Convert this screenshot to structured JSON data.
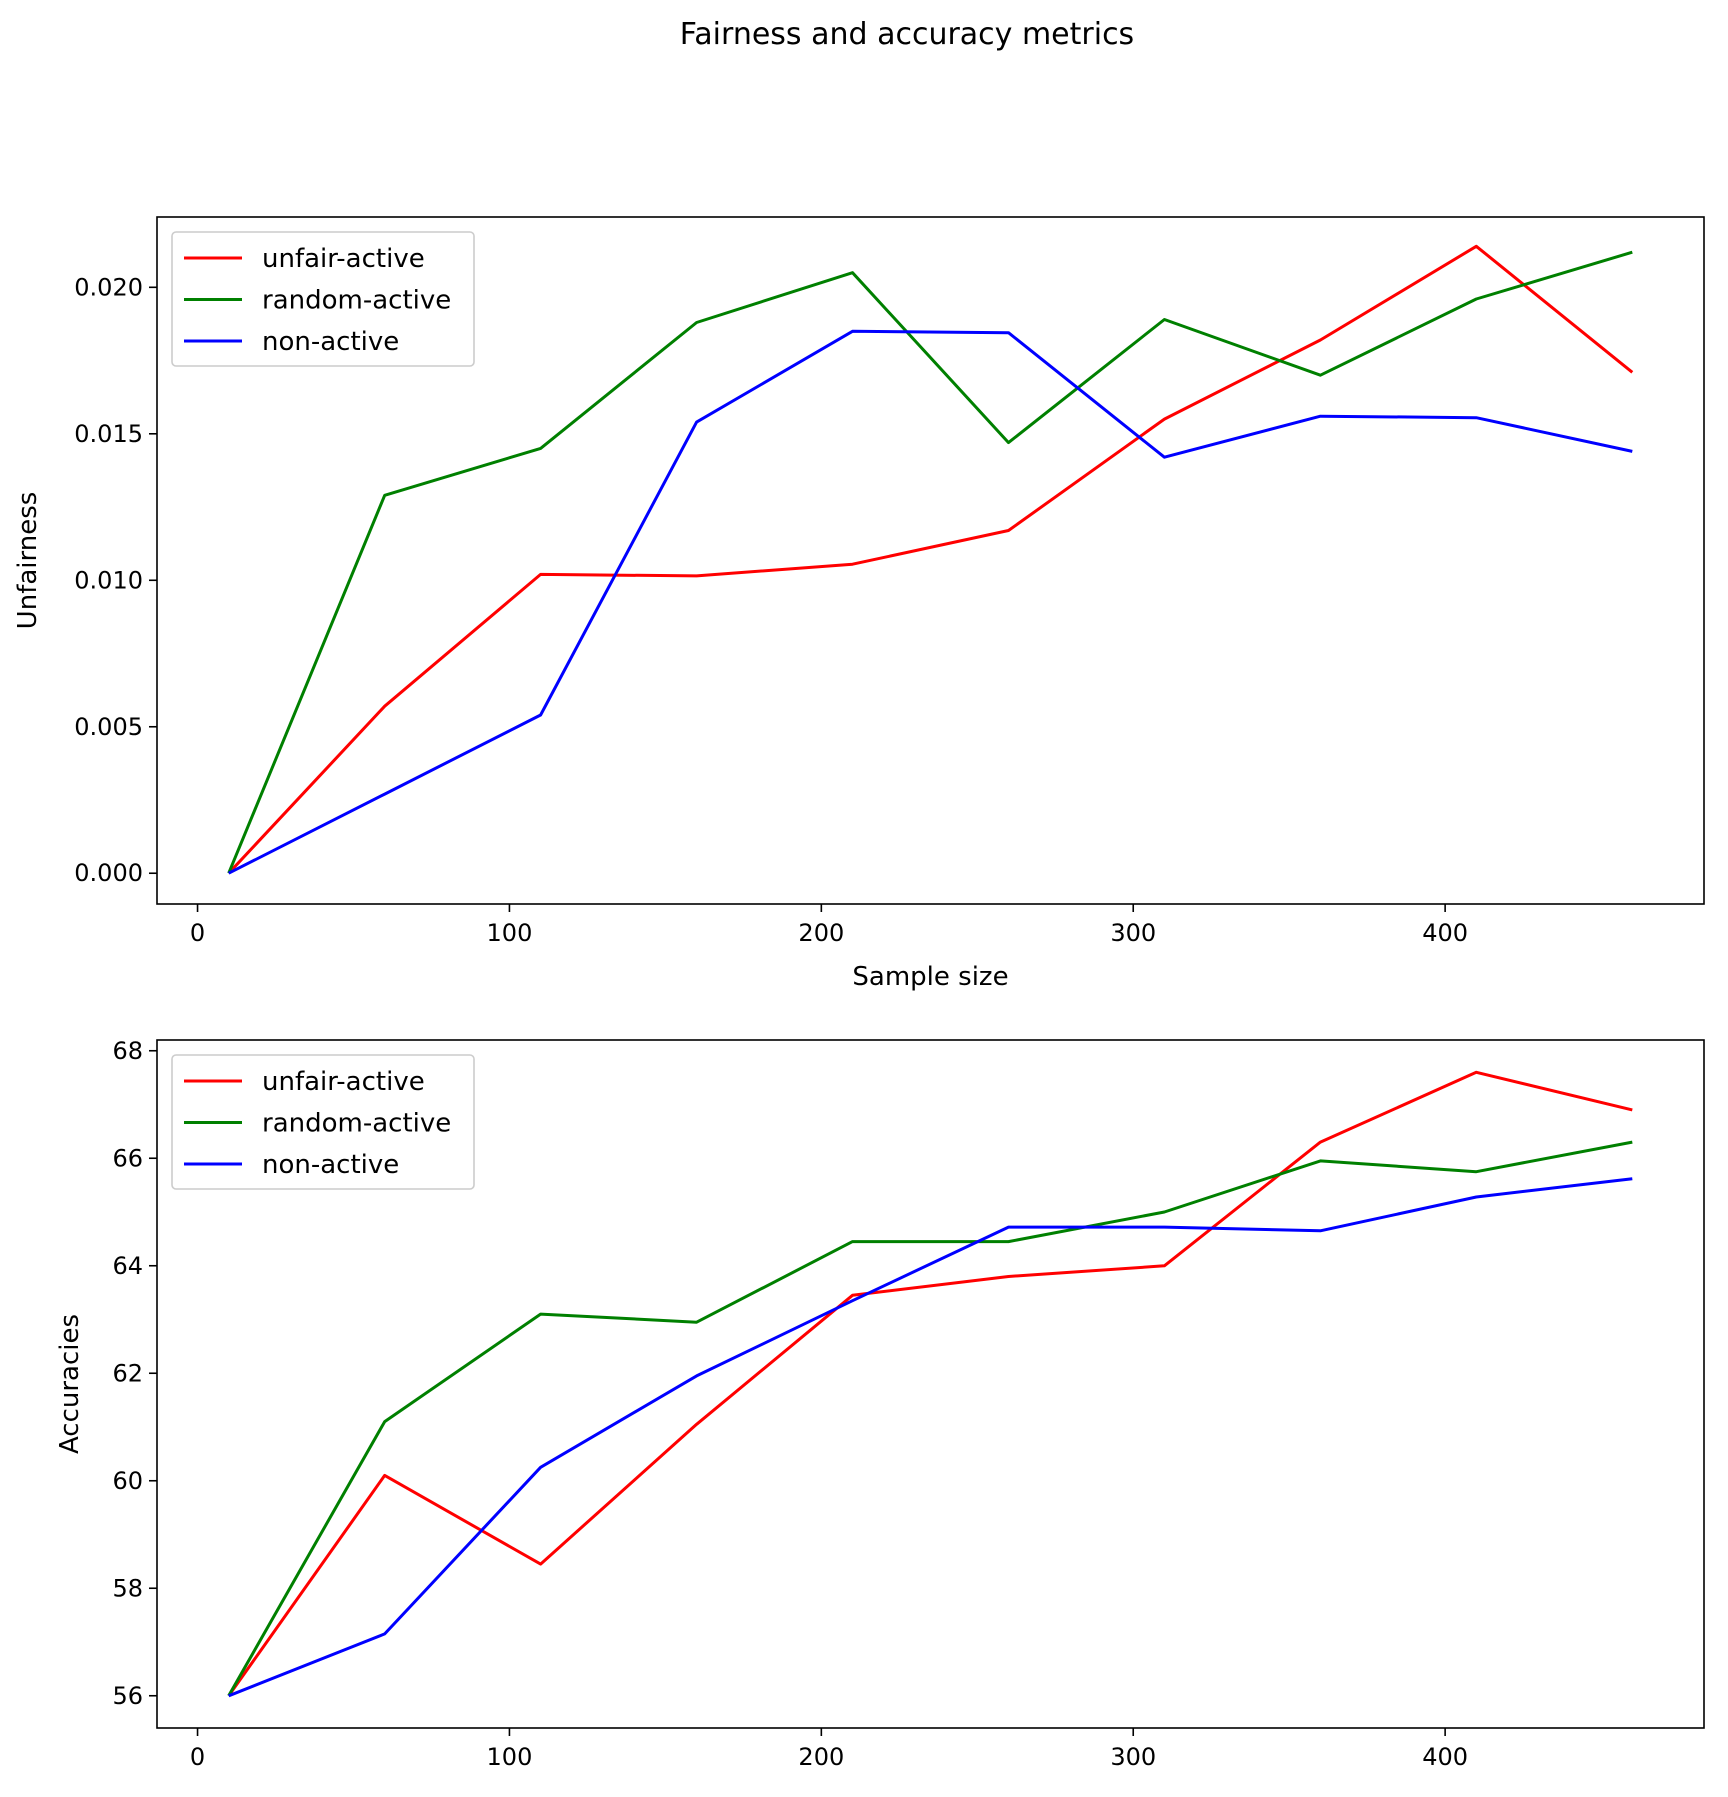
{
  "figure": {
    "title": "Fairness and accuracy metrics"
  },
  "chart_data": [
    {
      "type": "line",
      "title": "",
      "xlabel": "Sample size",
      "ylabel": "Unfairness",
      "x": [
        10,
        60,
        110,
        160,
        210,
        260,
        310,
        360,
        410,
        460
      ],
      "xlim": [
        -13,
        483
      ],
      "ylim": [
        -0.00105,
        0.0224
      ],
      "xticks": [
        0,
        100,
        200,
        300,
        400
      ],
      "yticks": [
        0.0,
        0.005,
        0.01,
        0.015,
        0.02
      ],
      "ytick_labels": [
        "0.000",
        "0.005",
        "0.010",
        "0.015",
        "0.020"
      ],
      "legend": "top-left",
      "grid": false,
      "series": [
        {
          "name": "unfair-active",
          "color": "#ff0000",
          "values": [
            0.0,
            0.0057,
            0.0102,
            0.01015,
            0.01055,
            0.0117,
            0.0155,
            0.0182,
            0.0214,
            0.0171
          ]
        },
        {
          "name": "random-active",
          "color": "#008000",
          "values": [
            0.0,
            0.0129,
            0.0145,
            0.0188,
            0.0205,
            0.0147,
            0.0189,
            0.017,
            0.0196,
            0.0212
          ]
        },
        {
          "name": "non-active",
          "color": "#0000ff",
          "values": [
            0.0,
            0.0027,
            0.0054,
            0.0154,
            0.0185,
            0.01845,
            0.0142,
            0.0156,
            0.01555,
            0.0144
          ]
        }
      ]
    },
    {
      "type": "line",
      "title": "",
      "xlabel": "",
      "ylabel": "Accuracies",
      "x": [
        10,
        60,
        110,
        160,
        210,
        260,
        310,
        360,
        410,
        460
      ],
      "xlim": [
        -13,
        483
      ],
      "ylim": [
        55.4,
        68.2
      ],
      "xticks": [
        0,
        100,
        200,
        300,
        400
      ],
      "yticks": [
        56,
        58,
        60,
        62,
        64,
        66,
        68
      ],
      "ytick_labels": [
        "56",
        "58",
        "60",
        "62",
        "64",
        "66",
        "68"
      ],
      "legend": "top-left",
      "grid": false,
      "series": [
        {
          "name": "unfair-active",
          "color": "#ff0000",
          "values": [
            56.0,
            60.1,
            58.45,
            61.05,
            63.45,
            63.8,
            64.0,
            66.3,
            67.6,
            66.9
          ]
        },
        {
          "name": "random-active",
          "color": "#008000",
          "values": [
            56.0,
            61.1,
            63.1,
            62.95,
            64.45,
            64.45,
            65.0,
            65.95,
            65.75,
            66.3
          ]
        },
        {
          "name": "non-active",
          "color": "#0000ff",
          "values": [
            56.0,
            57.15,
            60.25,
            61.95,
            63.35,
            64.72,
            64.72,
            64.65,
            65.28,
            65.62
          ]
        }
      ]
    }
  ]
}
